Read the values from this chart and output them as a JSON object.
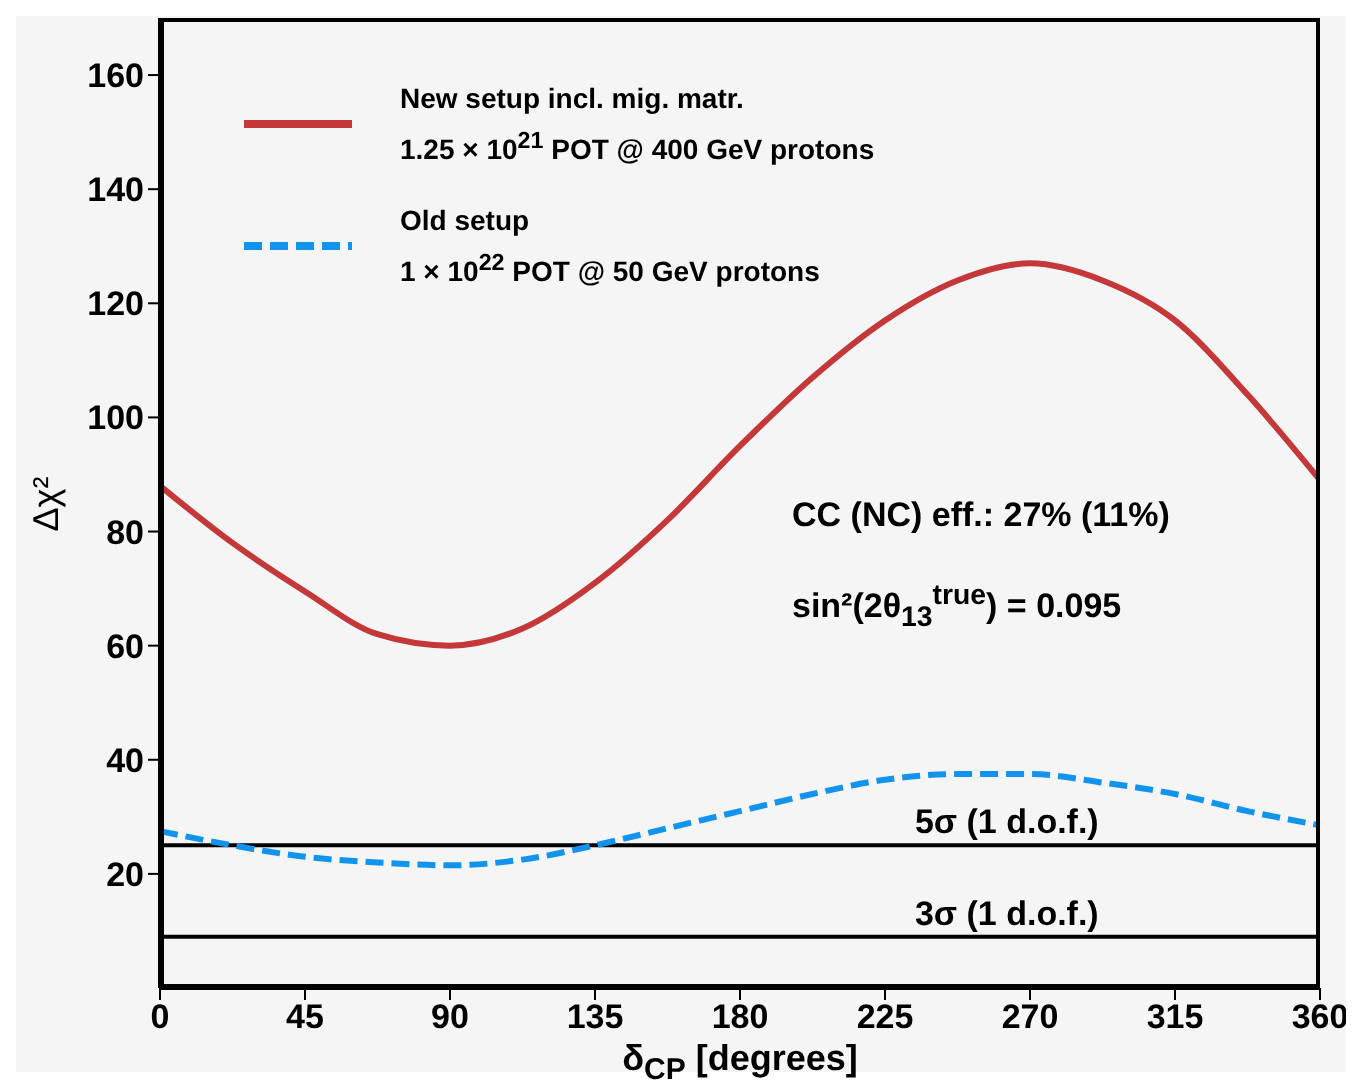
{
  "chart_data": {
    "type": "line",
    "xlabel": "δ$_{CP}$ [degrees]",
    "ylabel": "Δχ²",
    "x": [
      0,
      22.5,
      45,
      67.5,
      90,
      112.5,
      135,
      157.5,
      180,
      202.5,
      225,
      247.5,
      270,
      292.5,
      315,
      337.5,
      360
    ],
    "series": [
      {
        "name": "New setup incl. mig. matr.\n1.25 × 10$^{21}$ POT @ 400 GeV protons",
        "color": "#c4383a",
        "line_style": "solid",
        "values": [
          88,
          78,
          69.5,
          62,
          60,
          63,
          71,
          82,
          95,
          107,
          117,
          124,
          127,
          124,
          117,
          104,
          89
        ]
      },
      {
        "name": "Old setup\n1 × 10$^{22}$ POT @ 50 GeV protons",
        "color": "#1294ee",
        "line_style": "dashed",
        "values": [
          27.5,
          25,
          23,
          22,
          21.5,
          22.5,
          25,
          28,
          31,
          34,
          36.5,
          37.5,
          37.5,
          36,
          34,
          31,
          28.5
        ]
      }
    ],
    "xlim": [
      0,
      360
    ],
    "xticks": [
      0,
      45,
      90,
      135,
      180,
      225,
      270,
      315,
      360
    ],
    "ylim": [
      0,
      170
    ],
    "yticks": [
      20,
      40,
      60,
      80,
      100,
      120,
      140,
      160
    ],
    "ref_lines": [
      {
        "axis": "y",
        "value": 25,
        "label": "5σ (1 d.o.f.)",
        "color": "#000000"
      },
      {
        "axis": "y",
        "value": 9,
        "label": "3σ (1 d.o.f.)",
        "color": "#000000"
      }
    ],
    "annotations": [
      "CC (NC) eff.: 27% (11%)",
      "sin²(2θ$_{13}$$^{true}$) = 0.095"
    ],
    "legend": "top left",
    "grid": false,
    "marker": "none"
  }
}
